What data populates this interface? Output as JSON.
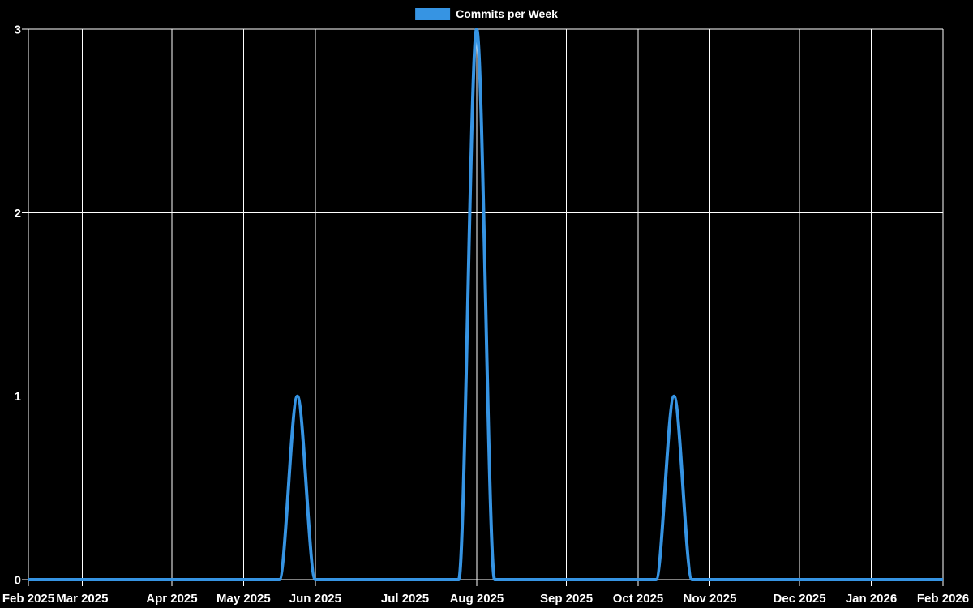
{
  "page": {
    "background": "#000000"
  },
  "legend": {
    "label": "Commits per Week",
    "swatch_color": "#3694e3"
  },
  "chart_data": {
    "type": "line",
    "title": "Commits per Week",
    "xlabel": "",
    "ylabel": "",
    "legend_position": "top-center",
    "background": "#000000",
    "grid": true,
    "grid_color": "#ffffff",
    "text_color": "#ffffff",
    "line_color": "#3694e3",
    "line_width": 4,
    "ylim": [
      0,
      3
    ],
    "y_ticks": [
      0,
      1,
      2,
      3
    ],
    "x_week_start": "2025-02-09",
    "x_week_count": 52,
    "x_tick_labels": [
      "Feb 2025",
      "Mar 2025",
      "Apr 2025",
      "May 2025",
      "Jun 2025",
      "Jul 2025",
      "Aug 2025",
      "Sep 2025",
      "Oct 2025",
      "Nov 2025",
      "Dec 2025",
      "Jan 2026",
      "Feb 2026"
    ],
    "x_tick_week_indices": [
      0,
      3,
      8,
      12,
      16,
      21,
      25,
      30,
      34,
      38,
      43,
      47,
      51
    ],
    "series": [
      {
        "name": "Commits per Week",
        "color": "#3694e3",
        "values": [
          0,
          0,
          0,
          0,
          0,
          0,
          0,
          0,
          0,
          0,
          0,
          0,
          0,
          0,
          0,
          1,
          0,
          0,
          0,
          0,
          0,
          0,
          0,
          0,
          0,
          3,
          0,
          0,
          0,
          0,
          0,
          0,
          0,
          0,
          0,
          0,
          1,
          0,
          0,
          0,
          0,
          0,
          0,
          0,
          0,
          0,
          0,
          0,
          0,
          0,
          0,
          0
        ]
      }
    ],
    "nonzero_points": [
      {
        "week_start": "2025-05-25",
        "value": 1
      },
      {
        "week_start": "2025-08-03",
        "value": 3
      },
      {
        "week_start": "2025-10-19",
        "value": 1
      }
    ]
  }
}
